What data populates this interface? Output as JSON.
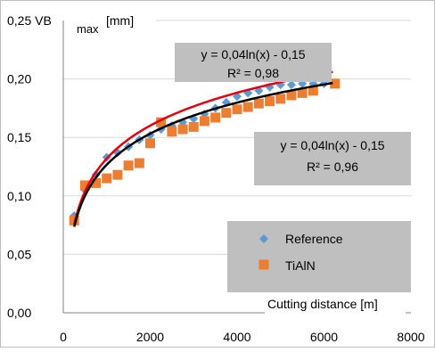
{
  "chart_data": {
    "type": "scatter",
    "title": "",
    "ylabel": "0,25 VB",
    "ylabel_sub": "max",
    "ylabel_unit": "[mm]",
    "xlabel": "Cutting distance [m]",
    "xlim": [
      0,
      8000
    ],
    "ylim": [
      0,
      0.25
    ],
    "x_ticks": [
      0,
      2000,
      4000,
      6000,
      8000
    ],
    "x_tick_labels": [
      "0",
      "2000",
      "4000",
      "6000",
      "8000"
    ],
    "y_ticks": [
      0,
      0.05,
      0.1,
      0.15,
      0.2
    ],
    "y_tick_labels": [
      "0,00",
      "0,05",
      "0,10",
      "0,15",
      "0,20"
    ],
    "grid": "horizontal",
    "legend_position": "bottom-right",
    "series": [
      {
        "name": "Reference",
        "marker": "diamond",
        "color": "#5b9bd5",
        "trend_color": "#e8000b",
        "trendline_label": "y = 0,04ln(x) - 0,15",
        "r2_label": "R² = 0,98",
        "points": [
          [
            250,
            0.083
          ],
          [
            500,
            0.105
          ],
          [
            750,
            0.118
          ],
          [
            1000,
            0.133
          ],
          [
            1250,
            0.137
          ],
          [
            1500,
            0.142
          ],
          [
            1750,
            0.148
          ],
          [
            2000,
            0.152
          ],
          [
            2250,
            0.157
          ],
          [
            2500,
            0.16
          ],
          [
            2750,
            0.163
          ],
          [
            3000,
            0.166
          ],
          [
            3250,
            0.17
          ],
          [
            3500,
            0.175
          ],
          [
            3750,
            0.18
          ],
          [
            4000,
            0.185
          ],
          [
            4250,
            0.188
          ],
          [
            4500,
            0.19
          ],
          [
            4750,
            0.193
          ],
          [
            5000,
            0.195
          ],
          [
            5250,
            0.195
          ],
          [
            5500,
            0.196
          ],
          [
            5750,
            0.196
          ],
          [
            6000,
            0.196
          ]
        ]
      },
      {
        "name": "TiAlN",
        "marker": "square",
        "color": "#ed7d31",
        "trend_color": "#000000",
        "trendline_label": "y = 0,04ln(x) - 0,15",
        "r2_label": "R² = 0,96",
        "points": [
          [
            250,
            0.079
          ],
          [
            500,
            0.109
          ],
          [
            750,
            0.111
          ],
          [
            1000,
            0.115
          ],
          [
            1250,
            0.118
          ],
          [
            1500,
            0.126
          ],
          [
            1750,
            0.128
          ],
          [
            2000,
            0.145
          ],
          [
            2250,
            0.163
          ],
          [
            2500,
            0.155
          ],
          [
            2750,
            0.157
          ],
          [
            3000,
            0.159
          ],
          [
            3250,
            0.164
          ],
          [
            3500,
            0.167
          ],
          [
            3750,
            0.171
          ],
          [
            4000,
            0.174
          ],
          [
            4250,
            0.176
          ],
          [
            4500,
            0.179
          ],
          [
            4750,
            0.181
          ],
          [
            5000,
            0.183
          ],
          [
            5250,
            0.186
          ],
          [
            5500,
            0.188
          ],
          [
            5750,
            0.19
          ],
          [
            6250,
            0.196
          ]
        ]
      }
    ]
  }
}
